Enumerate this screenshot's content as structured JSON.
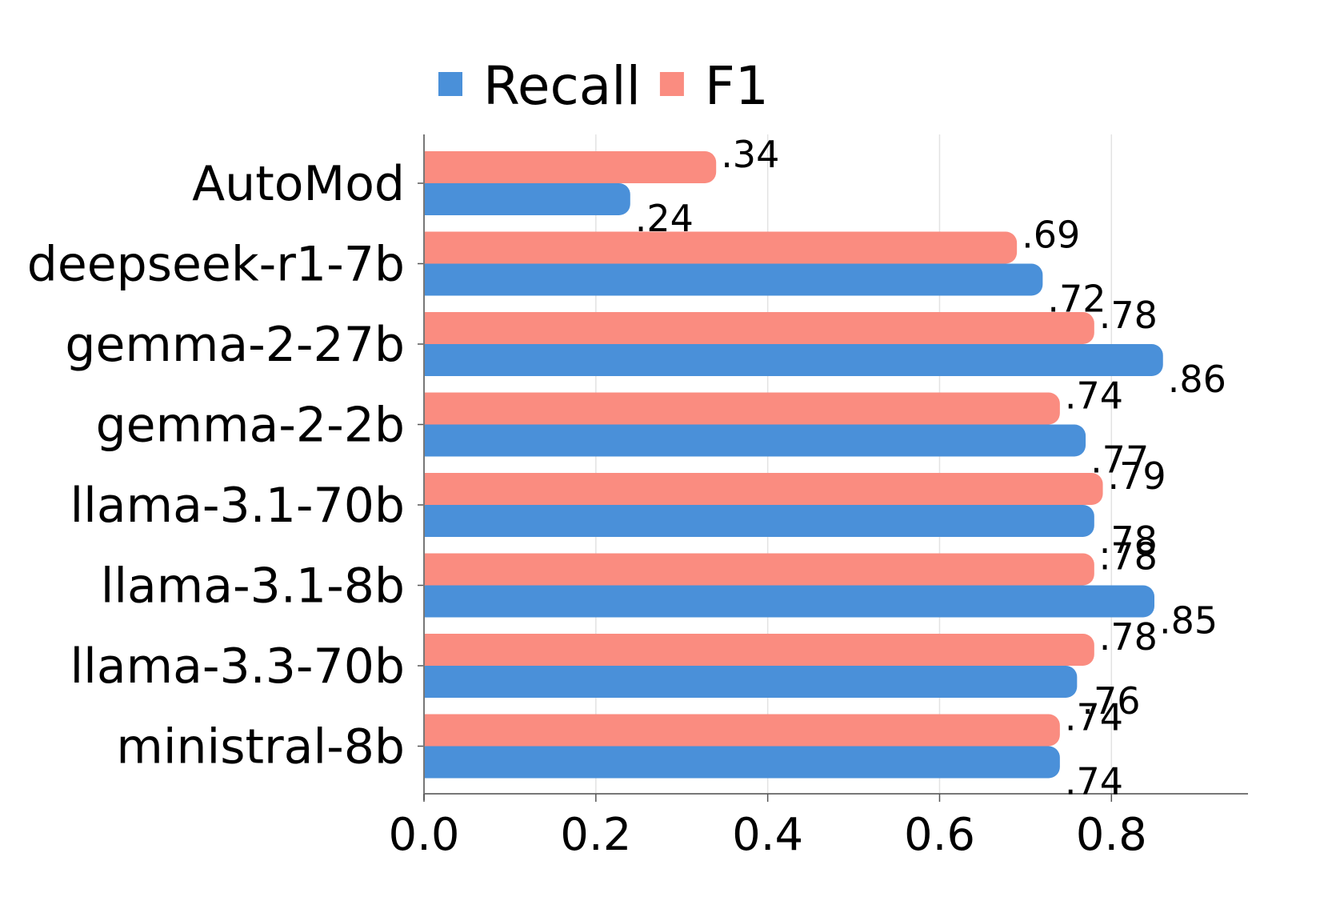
{
  "chart_data": {
    "type": "bar",
    "orientation": "horizontal",
    "categories": [
      "AutoMod",
      "deepseek-r1-7b",
      "gemma-2-27b",
      "gemma-2-2b",
      "llama-3.1-70b",
      "llama-3.1-8b",
      "llama-3.3-70b",
      "ministral-8b"
    ],
    "series": [
      {
        "name": "Recall",
        "color": "#4A90D9",
        "values": [
          0.24,
          0.72,
          0.86,
          0.77,
          0.78,
          0.85,
          0.76,
          0.74
        ],
        "labels": [
          ".24",
          ".72",
          ".86",
          ".77",
          ".78",
          ".85",
          ".76",
          ".74"
        ]
      },
      {
        "name": "F1",
        "color": "#FA8C80",
        "values": [
          0.34,
          0.69,
          0.78,
          0.74,
          0.79,
          0.78,
          0.78,
          0.74
        ],
        "labels": [
          ".34",
          ".69",
          ".78",
          ".74",
          ".79",
          ".78",
          ".78",
          ".74"
        ]
      }
    ],
    "xticks": [
      0.0,
      0.2,
      0.4,
      0.6,
      0.8
    ],
    "xtick_labels": [
      "0.0",
      "0.2",
      "0.4",
      "0.6",
      "0.8"
    ],
    "xlim": [
      0,
      0.9
    ],
    "grid": "vertical",
    "legend": "top-center",
    "title": "",
    "xlabel": "",
    "ylabel": ""
  }
}
